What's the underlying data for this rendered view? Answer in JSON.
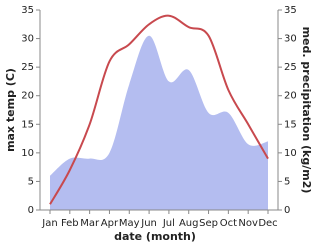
{
  "chart_data": {
    "type": "line",
    "categories": [
      "Jan",
      "Feb",
      "Mar",
      "Apr",
      "May",
      "Jun",
      "Jul",
      "Aug",
      "Sep",
      "Oct",
      "Nov",
      "Dec"
    ],
    "xlabel": "date (month)",
    "ylabel": "max temp (C)",
    "y2label": "med. precipitation (kg/m2)",
    "ylim": [
      0,
      35
    ],
    "yticks": [
      0,
      5,
      10,
      15,
      20,
      25,
      30,
      35
    ],
    "y2lim": [
      0,
      35
    ],
    "y2ticks": [
      0,
      5,
      10,
      15,
      20,
      25,
      30,
      35
    ],
    "series": [
      {
        "name": "med. precipitation",
        "type": "area",
        "axis": "y2",
        "color": "#b4bdf0",
        "values": [
          6,
          9,
          9,
          10,
          22,
          30.5,
          22.5,
          24.5,
          17,
          17,
          11.5,
          12
        ]
      },
      {
        "name": "max temp",
        "type": "line",
        "axis": "y",
        "color": "#c8494e",
        "values": [
          1,
          7,
          15,
          26,
          29,
          32.5,
          34,
          32,
          30.5,
          21,
          15,
          9
        ]
      }
    ]
  }
}
